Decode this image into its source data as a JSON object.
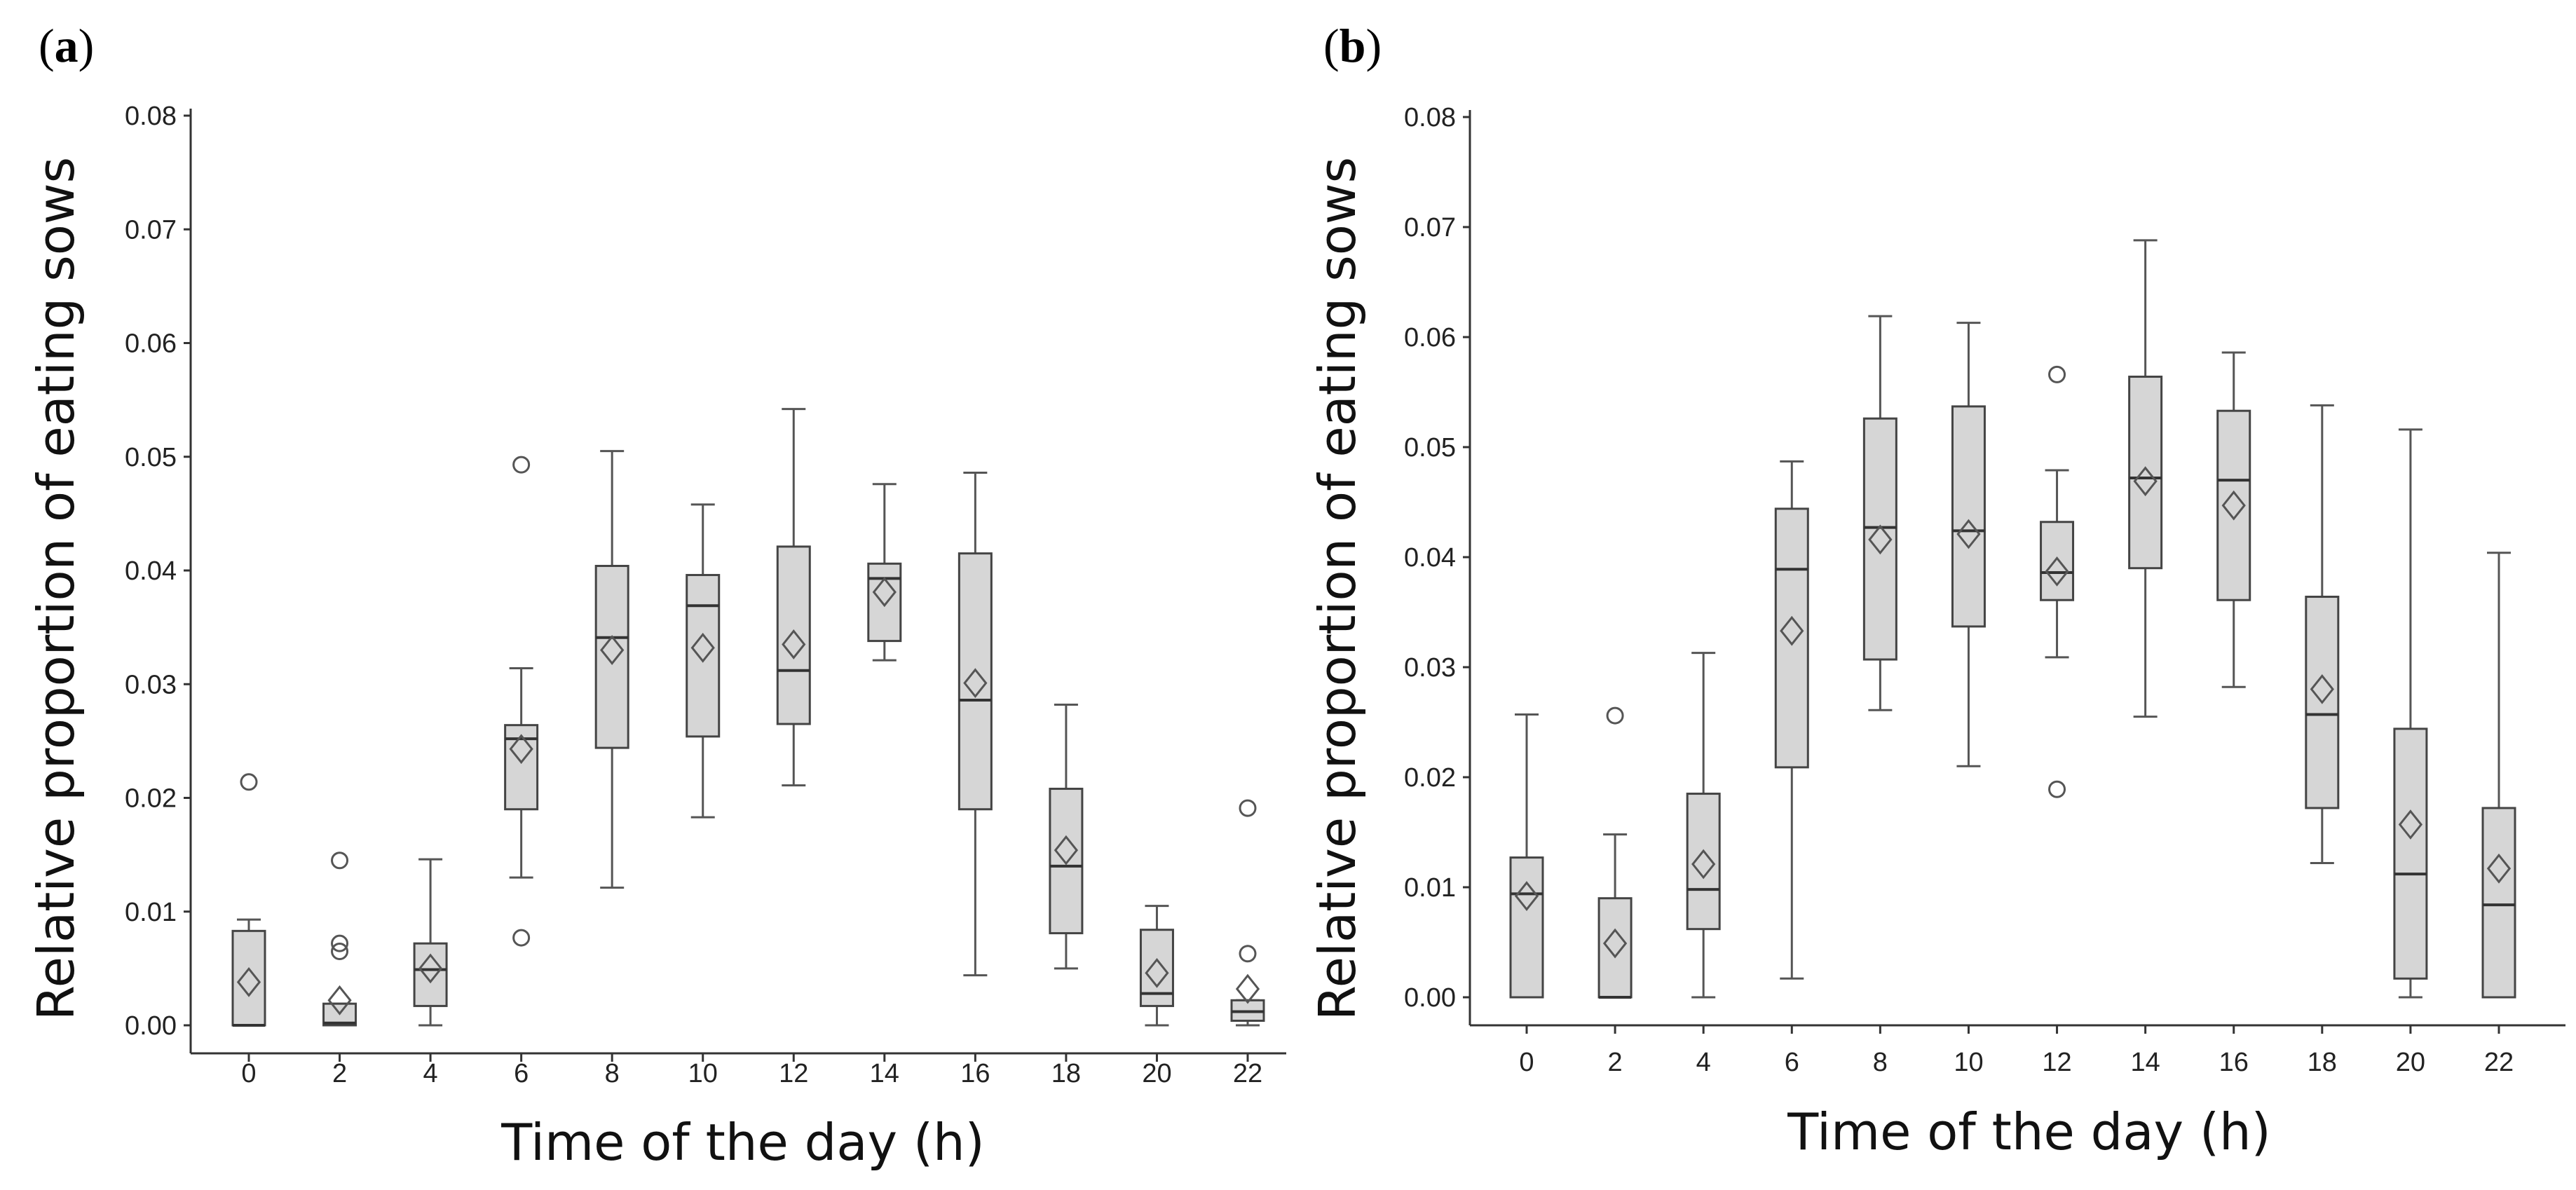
{
  "chart_data": [
    {
      "type": "boxplot",
      "panel_label_open": "(",
      "panel_label_letter": "a",
      "panel_label_close": ")",
      "xlabel": "Time of the day (h)",
      "ylabel": "Relative proportion of eating sows",
      "ylim": [
        0,
        0.08
      ],
      "yticks": [
        "0.00",
        "0.01",
        "0.02",
        "0.03",
        "0.04",
        "0.05",
        "0.06",
        "0.07",
        "0.08"
      ],
      "categories": [
        "0",
        "2",
        "4",
        "6",
        "8",
        "10",
        "12",
        "14",
        "16",
        "18",
        "20",
        "22"
      ],
      "boxes": [
        {
          "min": 0.0,
          "q1": 0.0,
          "median": 0.0,
          "q3": 0.0083,
          "max": 0.0093,
          "mean": 0.0038,
          "outliers": [
            0.0214
          ]
        },
        {
          "min": 0.0,
          "q1": 0.0,
          "median": 0.0002,
          "q3": 0.0019,
          "max": 0.0019,
          "mean": 0.0022,
          "outliers": [
            0.0065,
            0.0072,
            0.0145
          ]
        },
        {
          "min": 0.0,
          "q1": 0.0017,
          "median": 0.0049,
          "q3": 0.0072,
          "max": 0.0146,
          "mean": 0.005,
          "outliers": []
        },
        {
          "min": 0.013,
          "q1": 0.019,
          "median": 0.0252,
          "q3": 0.0264,
          "max": 0.0314,
          "mean": 0.0243,
          "outliers": [
            0.0077,
            0.0493
          ]
        },
        {
          "min": 0.0121,
          "q1": 0.0244,
          "median": 0.0341,
          "q3": 0.0404,
          "max": 0.0505,
          "mean": 0.033,
          "outliers": []
        },
        {
          "min": 0.0183,
          "q1": 0.0254,
          "median": 0.0369,
          "q3": 0.0396,
          "max": 0.0458,
          "mean": 0.0332,
          "outliers": []
        },
        {
          "min": 0.0211,
          "q1": 0.0265,
          "median": 0.0312,
          "q3": 0.0421,
          "max": 0.0542,
          "mean": 0.0335,
          "outliers": []
        },
        {
          "min": 0.0321,
          "q1": 0.0338,
          "median": 0.0393,
          "q3": 0.0406,
          "max": 0.0476,
          "mean": 0.0381,
          "outliers": []
        },
        {
          "min": 0.0044,
          "q1": 0.019,
          "median": 0.0286,
          "q3": 0.0415,
          "max": 0.0486,
          "mean": 0.0301,
          "outliers": []
        },
        {
          "min": 0.005,
          "q1": 0.0081,
          "median": 0.014,
          "q3": 0.0208,
          "max": 0.0282,
          "mean": 0.0154,
          "outliers": []
        },
        {
          "min": 0.0,
          "q1": 0.0017,
          "median": 0.0028,
          "q3": 0.0084,
          "max": 0.0105,
          "mean": 0.0046,
          "outliers": []
        },
        {
          "min": 0.0,
          "q1": 0.0004,
          "median": 0.0012,
          "q3": 0.0022,
          "max": 0.0022,
          "mean": 0.0032,
          "outliers": [
            0.0063,
            0.0191
          ]
        }
      ]
    },
    {
      "type": "boxplot",
      "panel_label_open": "(",
      "panel_label_letter": "b",
      "panel_label_close": ")",
      "xlabel": "Time of the day (h)",
      "ylabel": "Relative proportion of eating sows",
      "ylim": [
        0,
        0.08
      ],
      "yticks": [
        "0.00",
        "0.01",
        "0.02",
        "0.03",
        "0.04",
        "0.05",
        "0.06",
        "0.07",
        "0.08"
      ],
      "categories": [
        "0",
        "2",
        "4",
        "6",
        "8",
        "10",
        "12",
        "14",
        "16",
        "18",
        "20",
        "22"
      ],
      "boxes": [
        {
          "min": 0.0,
          "q1": 0.0,
          "median": 0.0094,
          "q3": 0.0127,
          "max": 0.0257,
          "mean": 0.0092,
          "outliers": []
        },
        {
          "min": 0.0,
          "q1": 0.0,
          "median": 0.0,
          "q3": 0.009,
          "max": 0.0148,
          "mean": 0.0049,
          "outliers": [
            0.0256
          ]
        },
        {
          "min": 0.0,
          "q1": 0.0062,
          "median": 0.0098,
          "q3": 0.0185,
          "max": 0.0313,
          "mean": 0.0121,
          "outliers": []
        },
        {
          "min": 0.0017,
          "q1": 0.0209,
          "median": 0.0389,
          "q3": 0.0444,
          "max": 0.0487,
          "mean": 0.0333,
          "outliers": []
        },
        {
          "min": 0.0261,
          "q1": 0.0307,
          "median": 0.0427,
          "q3": 0.0526,
          "max": 0.0619,
          "mean": 0.0416,
          "outliers": []
        },
        {
          "min": 0.021,
          "q1": 0.0337,
          "median": 0.0424,
          "q3": 0.0537,
          "max": 0.0613,
          "mean": 0.0421,
          "outliers": []
        },
        {
          "min": 0.0309,
          "q1": 0.0361,
          "median": 0.0386,
          "q3": 0.0432,
          "max": 0.0479,
          "mean": 0.0387,
          "outliers": [
            0.0189,
            0.0566
          ]
        },
        {
          "min": 0.0255,
          "q1": 0.039,
          "median": 0.0472,
          "q3": 0.0564,
          "max": 0.0688,
          "mean": 0.0469,
          "outliers": []
        },
        {
          "min": 0.0282,
          "q1": 0.0361,
          "median": 0.047,
          "q3": 0.0533,
          "max": 0.0586,
          "mean": 0.0447,
          "outliers": []
        },
        {
          "min": 0.0122,
          "q1": 0.0172,
          "median": 0.0257,
          "q3": 0.0364,
          "max": 0.0538,
          "mean": 0.028,
          "outliers": []
        },
        {
          "min": 0.0,
          "q1": 0.0017,
          "median": 0.0112,
          "q3": 0.0244,
          "max": 0.0516,
          "mean": 0.0157,
          "outliers": []
        },
        {
          "min": 0.0,
          "q1": 0.0,
          "median": 0.0084,
          "q3": 0.0172,
          "max": 0.0404,
          "mean": 0.0117,
          "outliers": []
        }
      ]
    }
  ]
}
